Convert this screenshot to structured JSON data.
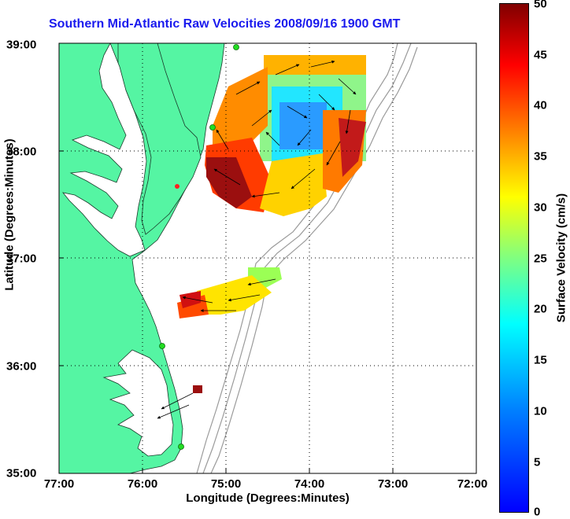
{
  "title": "Southern Mid-Atlantic Raw Velocities 2008/09/16 1900 GMT",
  "x_axis": {
    "label": "Longitude (Degrees:Minutes)",
    "ticks": [
      "77:00",
      "76:00",
      "75:00",
      "74:00",
      "73:00",
      "72:00"
    ]
  },
  "y_axis": {
    "label": "Latitude (Degrees:Minutes)",
    "ticks": [
      "39:00",
      "38:00",
      "37:00",
      "36:00",
      "35:00"
    ]
  },
  "colorbar": {
    "label": "Surface Velocity (cm/s)",
    "ticks": [
      "50",
      "45",
      "40",
      "35",
      "30",
      "25",
      "20",
      "15",
      "10",
      "5",
      "0"
    ],
    "range": [
      0,
      50
    ],
    "colormap": "jet"
  },
  "colors": {
    "land": "#55f5a3",
    "title": "#1a1aee",
    "bathymetry": "#9a9a9a",
    "radar_site": "#22dd22"
  },
  "map": {
    "projection": "lon/lat",
    "lon_range": [
      -77,
      -72
    ],
    "lat_range": [
      35,
      39
    ],
    "grid": true,
    "features": [
      "land",
      "chesapeake-bay",
      "bathymetry-contours",
      "radar-sites",
      "current-vectors",
      "velocity-field"
    ]
  }
}
